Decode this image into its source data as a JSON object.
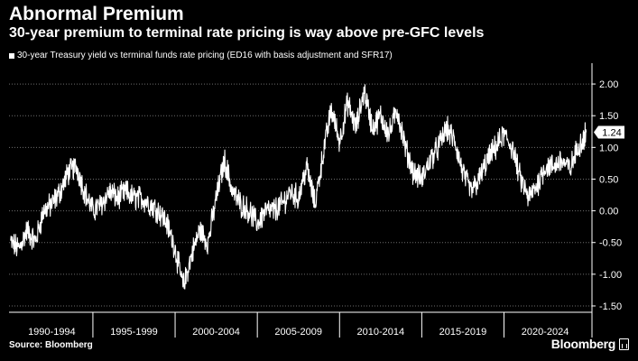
{
  "header": {
    "title": "Abnormal Premium",
    "subtitle": "30-year premium to terminal rate pricing is way above pre-GFC levels"
  },
  "footer": {
    "source": "Source: Bloomberg",
    "brand": "Bloomberg"
  },
  "colors": {
    "background": "#000000",
    "line": "#ffffff",
    "grid": "#6e6e6e",
    "text": "#ffffff",
    "callout_bg": "#ffffff"
  },
  "chart_data": {
    "type": "line",
    "title": "Abnormal Premium",
    "subtitle": "30-year premium to terminal rate pricing is way above pre-GFC levels",
    "series": [
      {
        "name": "30-year Treasury yield vs terminal funds rate pricing (ED16 with basis adjustment and SFR17)",
        "last_value": 1.24,
        "last_value_label": "1.24",
        "x": [
          1990.0,
          1990.5,
          1991.0,
          1991.5,
          1992.0,
          1992.5,
          1993.0,
          1993.5,
          1994.0,
          1994.5,
          1995.0,
          1995.5,
          1996.0,
          1996.5,
          1997.0,
          1997.5,
          1998.0,
          1998.5,
          1999.0,
          1999.5,
          2000.0,
          2000.5,
          2001.0,
          2001.5,
          2002.0,
          2002.5,
          2003.0,
          2003.5,
          2004.0,
          2004.5,
          2005.0,
          2005.5,
          2006.0,
          2006.5,
          2007.0,
          2007.5,
          2008.0,
          2008.5,
          2009.0,
          2009.5,
          2010.0,
          2010.5,
          2011.0,
          2011.5,
          2012.0,
          2012.5,
          2013.0,
          2013.5,
          2014.0,
          2014.5,
          2015.0,
          2015.5,
          2016.0,
          2016.5,
          2017.0,
          2017.5,
          2018.0,
          2018.5,
          2019.0,
          2019.5,
          2020.0,
          2020.5,
          2021.0,
          2021.5,
          2022.0,
          2022.5,
          2023.0,
          2023.5,
          2024.0,
          2024.5,
          2025.0
        ],
        "y": [
          -0.5,
          -0.6,
          -0.3,
          -0.5,
          0.0,
          0.1,
          0.3,
          0.6,
          0.7,
          0.3,
          0.0,
          0.1,
          0.3,
          0.2,
          0.3,
          0.2,
          0.2,
          0.1,
          0.0,
          -0.2,
          -0.6,
          -1.2,
          -0.7,
          -0.3,
          -0.5,
          0.2,
          0.8,
          0.3,
          0.1,
          0.0,
          -0.2,
          0.0,
          0.0,
          0.1,
          0.3,
          0.2,
          0.7,
          0.1,
          0.9,
          1.6,
          1.1,
          1.7,
          1.3,
          1.9,
          1.3,
          1.5,
          1.2,
          1.6,
          1.0,
          0.6,
          0.5,
          0.8,
          1.0,
          1.3,
          1.1,
          0.6,
          0.3,
          0.5,
          0.8,
          1.0,
          1.2,
          1.0,
          0.5,
          0.2,
          0.4,
          0.7,
          0.7,
          0.8,
          0.65,
          1.0,
          1.24
        ]
      }
    ],
    "categories": [
      "1990-1994",
      "1995-1999",
      "2000-2004",
      "2005-2009",
      "2010-2014",
      "2015-2019",
      "2020-2024"
    ],
    "category_ranges": [
      [
        1990,
        1995
      ],
      [
        1995,
        2000
      ],
      [
        2000,
        2005
      ],
      [
        2005,
        2010
      ],
      [
        2010,
        2015
      ],
      [
        2015,
        2020
      ],
      [
        2020,
        2025
      ]
    ],
    "xlim": [
      1989.9,
      2025.35
    ],
    "ylim": [
      -1.6,
      2.3
    ],
    "yticks": [
      -1.5,
      -1.0,
      -0.5,
      0.0,
      0.5,
      1.0,
      1.5,
      2.0
    ],
    "ytick_labels": [
      "-1.50",
      "-1.00",
      "-0.50",
      "0.00",
      "0.50",
      "1.00",
      "1.50",
      "2.00"
    ],
    "y_axis_position": "right",
    "grid": true,
    "legend_position": "top-left"
  }
}
